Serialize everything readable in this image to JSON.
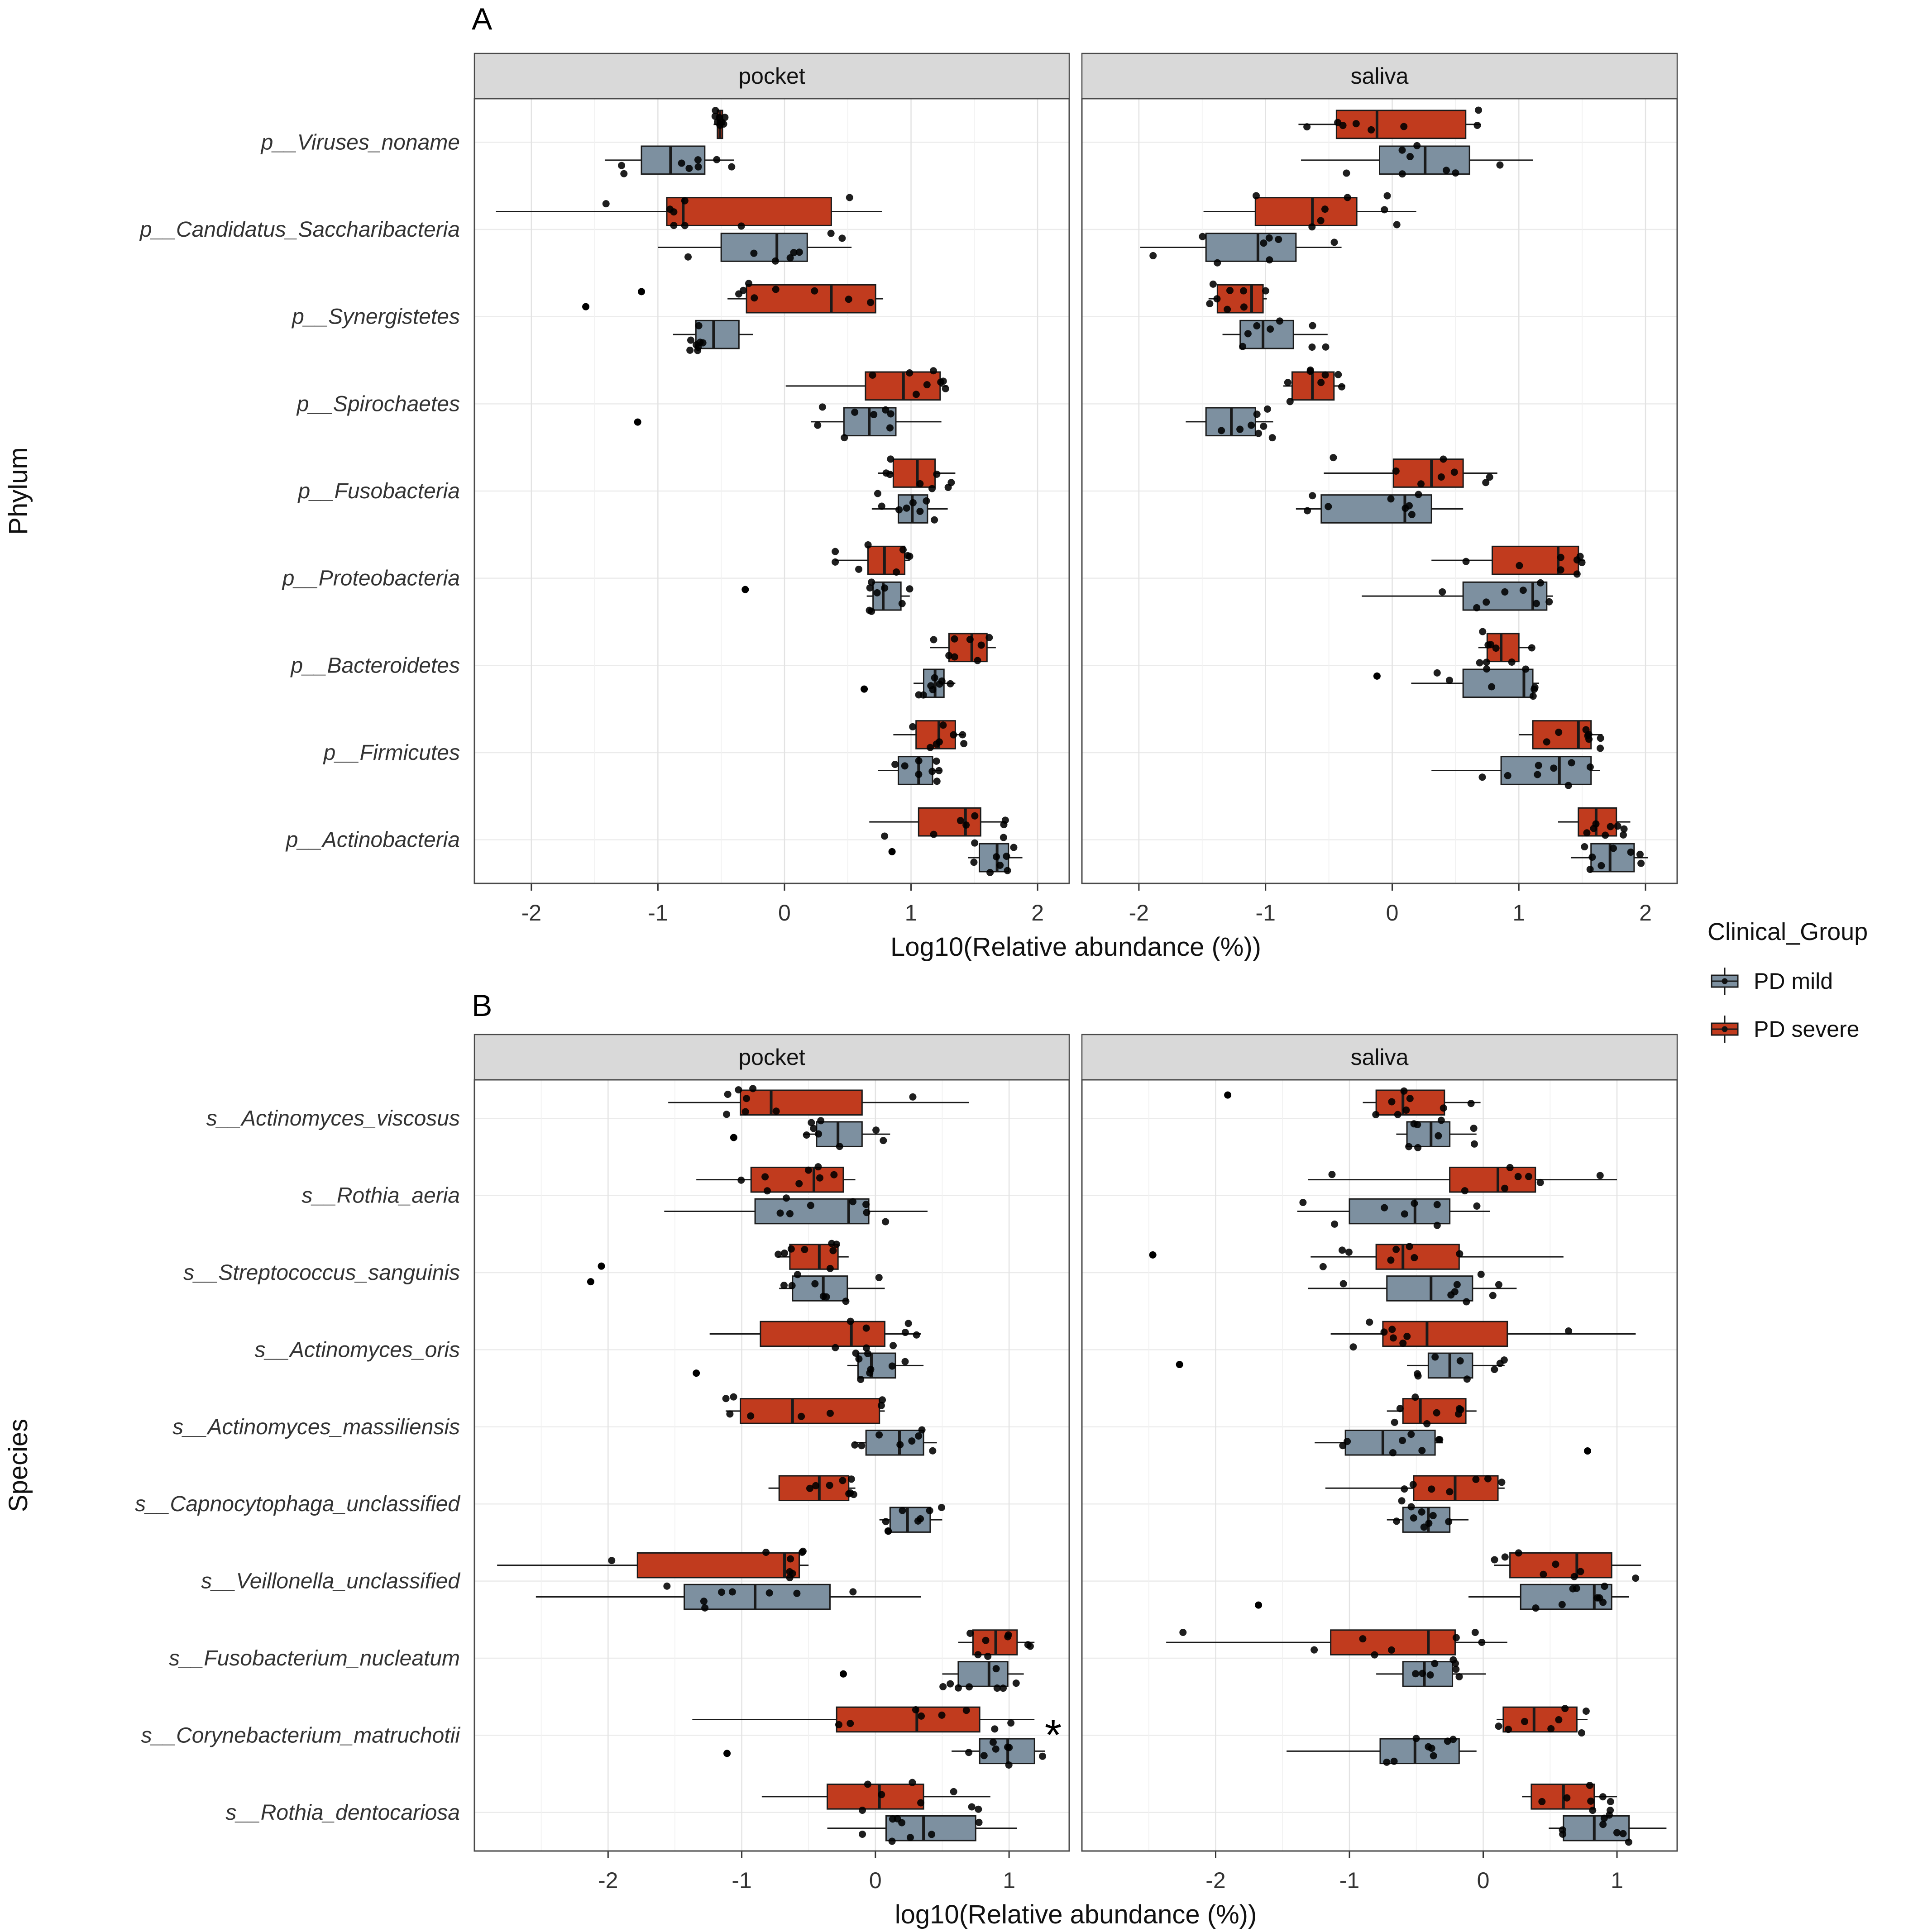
{
  "legend": {
    "title": "Clinical_Group",
    "items": [
      {
        "label": "PD mild",
        "color": "#7D90A0"
      },
      {
        "label": "PD severe",
        "color": "#C13B1E"
      }
    ]
  },
  "chart_data": [
    {
      "panel": "A",
      "type": "boxplot",
      "orientation": "horizontal",
      "axis_label": "Phylum",
      "xlabel": "Log10(Relative abundance (%))",
      "xlim": [
        -2.45,
        2.25
      ],
      "xticks": [
        -2,
        -1,
        0,
        1,
        2
      ],
      "facets": [
        "pocket",
        "saliva"
      ],
      "categories": [
        "p__Viruses_noname",
        "p__Candidatus_Saccharibacteria",
        "p__Synergistetes",
        "p__Spirochaetes",
        "p__Fusobacteria",
        "p__Proteobacteria",
        "p__Bacteroidetes",
        "p__Firmicutes",
        "p__Actinobacteria"
      ],
      "series": [
        {
          "name": "PD severe",
          "color": "#C13B1E",
          "offset": -0.205,
          "facet_values": {
            "pocket": [
              [
                -0.56,
                -0.53,
                -0.51,
                -0.49,
                -0.47
              ],
              [
                -2.28,
                -0.93,
                -0.8,
                0.37,
                0.77
              ],
              [
                -0.45,
                -0.3,
                0.37,
                0.72,
                0.78
              ],
              [
                0.01,
                0.64,
                0.94,
                1.23,
                1.29
              ],
              [
                0.74,
                0.86,
                1.05,
                1.19,
                1.35
              ],
              [
                0.4,
                0.66,
                0.79,
                0.95,
                0.99
              ],
              [
                1.15,
                1.3,
                1.48,
                1.6,
                1.67
              ],
              [
                0.86,
                1.04,
                1.22,
                1.35,
                1.42
              ],
              [
                0.67,
                1.06,
                1.43,
                1.55,
                1.75
              ]
            ],
            "saliva": [
              [
                -0.74,
                -0.44,
                -0.12,
                0.58,
                0.7
              ],
              [
                -1.49,
                -1.08,
                -0.63,
                -0.28,
                0.19
              ],
              [
                -1.45,
                -1.38,
                -1.11,
                -1.02,
                -0.99
              ],
              [
                -0.86,
                -0.79,
                -0.63,
                -0.46,
                -0.37
              ],
              [
                -0.54,
                0.01,
                0.31,
                0.56,
                0.83
              ],
              [
                0.31,
                0.79,
                1.31,
                1.47,
                1.52
              ],
              [
                0.68,
                0.75,
                0.86,
                1.0,
                1.11
              ],
              [
                1.0,
                1.11,
                1.47,
                1.57,
                1.66
              ],
              [
                1.31,
                1.47,
                1.61,
                1.77,
                1.88
              ]
            ]
          },
          "facet_outliers": {
            "pocket": {
              "2": [
                -1.57,
                -1.13
              ]
            }
          }
        },
        {
          "name": "PD mild",
          "color": "#7D90A0",
          "offset": 0.205,
          "facet_values": {
            "pocket": [
              [
                -1.42,
                -1.13,
                -0.9,
                -0.63,
                -0.4
              ],
              [
                -1.0,
                -0.5,
                -0.06,
                0.18,
                0.53
              ],
              [
                -0.88,
                -0.7,
                -0.56,
                -0.36,
                -0.25
              ],
              [
                0.21,
                0.47,
                0.67,
                0.88,
                1.24
              ],
              [
                0.69,
                0.9,
                1.01,
                1.13,
                1.29
              ],
              [
                0.65,
                0.7,
                0.78,
                0.92,
                0.99
              ],
              [
                1.02,
                1.1,
                1.19,
                1.26,
                1.35
              ],
              [
                0.74,
                0.9,
                1.06,
                1.17,
                1.24
              ],
              [
                1.45,
                1.54,
                1.68,
                1.77,
                1.88
              ]
            ],
            "saliva": [
              [
                -0.72,
                -0.1,
                0.26,
                0.61,
                1.11
              ],
              [
                -1.99,
                -1.47,
                -1.06,
                -0.76,
                -0.4
              ],
              [
                -1.34,
                -1.2,
                -1.02,
                -0.78,
                -0.51
              ],
              [
                -1.63,
                -1.47,
                -1.27,
                -1.08,
                -0.94
              ],
              [
                -0.76,
                -0.56,
                0.1,
                0.31,
                0.56
              ],
              [
                -0.24,
                0.56,
                1.11,
                1.22,
                1.27
              ],
              [
                0.15,
                0.56,
                1.04,
                1.11,
                1.16
              ],
              [
                0.31,
                0.86,
                1.32,
                1.57,
                1.64
              ],
              [
                1.41,
                1.57,
                1.72,
                1.91,
                2.02
              ]
            ]
          },
          "facet_outliers": {
            "pocket": {
              "3": [
                -1.16
              ],
              "5": [
                -0.31
              ],
              "6": [
                0.63
              ],
              "8": [
                0.85
              ]
            },
            "saliva": {
              "6": [
                -0.12
              ]
            }
          }
        }
      ],
      "annotations": []
    },
    {
      "panel": "B",
      "type": "boxplot",
      "orientation": "horizontal",
      "axis_label": "Species",
      "xlabel": "log10(Relative abundance (%))",
      "xlim": [
        -3.0,
        1.45
      ],
      "xticks": [
        -2,
        -1,
        0,
        1
      ],
      "facets": [
        "pocket",
        "saliva"
      ],
      "categories": [
        "s__Actinomyces_viscosus",
        "s__Rothia_aeria",
        "s__Streptococcus_sanguinis",
        "s__Actinomyces_oris",
        "s__Actinomyces_massiliensis",
        "s__Capnocytophaga_unclassified",
        "s__Veillonella_unclassified",
        "s__Fusobacterium_nucleatum",
        "s__Corynebacterium_matruchotii",
        "s__Rothia_dentocariosa"
      ],
      "series": [
        {
          "name": "PD severe",
          "color": "#C13B1E",
          "offset": -0.205,
          "facet_values": {
            "pocket": [
              [
                -1.55,
                -1.01,
                -0.78,
                -0.1,
                0.7
              ],
              [
                -1.34,
                -0.93,
                -0.46,
                -0.24,
                -0.15
              ],
              [
                -0.73,
                -0.64,
                -0.42,
                -0.28,
                -0.2
              ],
              [
                -1.24,
                -0.86,
                -0.18,
                0.07,
                0.34
              ],
              [
                -1.12,
                -1.01,
                -0.62,
                0.03,
                0.07
              ],
              [
                -0.8,
                -0.72,
                -0.42,
                -0.2,
                -0.15
              ],
              [
                -2.83,
                -1.78,
                -0.68,
                -0.57,
                -0.5
              ],
              [
                0.62,
                0.73,
                0.9,
                1.06,
                1.19
              ],
              [
                -1.37,
                -0.29,
                0.31,
                0.78,
                1.19
              ],
              [
                -0.85,
                -0.36,
                0.03,
                0.36,
                0.86
              ]
            ],
            "saliva": [
              [
                -0.9,
                -0.8,
                -0.6,
                -0.29,
                -0.02
              ],
              [
                -1.31,
                -0.25,
                0.11,
                0.39,
                1.0
              ],
              [
                -1.29,
                -0.8,
                -0.6,
                -0.18,
                0.6
              ],
              [
                -1.14,
                -0.75,
                -0.42,
                0.18,
                1.14
              ],
              [
                -0.72,
                -0.6,
                -0.47,
                -0.13,
                -0.05
              ],
              [
                -1.18,
                -0.52,
                -0.21,
                0.11,
                0.16
              ],
              [
                0.08,
                0.2,
                0.7,
                0.96,
                1.18
              ],
              [
                -2.37,
                -1.14,
                -0.41,
                -0.21,
                0.18
              ],
              [
                0.1,
                0.15,
                0.38,
                0.7,
                0.78
              ],
              [
                0.29,
                0.36,
                0.6,
                0.83,
                1.0
              ]
            ]
          },
          "facet_outliers": {
            "pocket": {
              "2": [
                -2.05
              ]
            },
            "saliva": {
              "0": [
                -1.91
              ],
              "2": [
                -2.47
              ]
            }
          }
        },
        {
          "name": "PD mild",
          "color": "#7D90A0",
          "offset": 0.205,
          "facet_values": {
            "pocket": [
              [
                -0.54,
                -0.44,
                -0.28,
                -0.1,
                0.11
              ],
              [
                -1.58,
                -0.9,
                -0.2,
                -0.05,
                0.39
              ],
              [
                -0.72,
                -0.62,
                -0.39,
                -0.21,
                0.07
              ],
              [
                -0.21,
                -0.13,
                -0.03,
                0.15,
                0.36
              ],
              [
                -0.16,
                -0.07,
                0.18,
                0.36,
                0.46
              ],
              [
                0.03,
                0.11,
                0.24,
                0.41,
                0.5
              ],
              [
                -2.54,
                -1.43,
                -0.9,
                -0.34,
                0.34
              ],
              [
                0.5,
                0.62,
                0.85,
                0.99,
                1.11
              ],
              [
                0.57,
                0.78,
                0.99,
                1.19,
                1.27
              ],
              [
                -0.36,
                0.08,
                0.36,
                0.75,
                1.06
              ]
            ],
            "saliva": [
              [
                -0.65,
                -0.57,
                -0.39,
                -0.25,
                -0.05
              ],
              [
                -1.39,
                -1.0,
                -0.51,
                -0.25,
                0.05
              ],
              [
                -1.31,
                -0.72,
                -0.39,
                -0.08,
                0.25
              ],
              [
                -0.57,
                -0.41,
                -0.25,
                -0.08,
                0.16
              ],
              [
                -1.26,
                -1.03,
                -0.75,
                -0.36,
                -0.3
              ],
              [
                -0.72,
                -0.6,
                -0.41,
                -0.25,
                -0.11
              ],
              [
                -0.11,
                0.28,
                0.83,
                0.96,
                1.09
              ],
              [
                -0.8,
                -0.6,
                -0.44,
                -0.23,
                0.02
              ],
              [
                -1.47,
                -0.77,
                -0.51,
                -0.18,
                -0.05
              ],
              [
                0.49,
                0.6,
                0.83,
                1.09,
                1.37
              ]
            ]
          },
          "facet_outliers": {
            "pocket": {
              "0": [
                -1.06
              ],
              "2": [
                -2.13
              ],
              "3": [
                -1.34
              ],
              "7": [
                -0.24
              ],
              "8": [
                -1.11
              ]
            },
            "saliva": {
              "3": [
                -2.27
              ],
              "4": [
                0.78
              ],
              "6": [
                -1.68
              ]
            }
          }
        }
      ],
      "annotations": [
        {
          "facet": "pocket",
          "category_index": 8,
          "x": 1.33,
          "symbol": "*"
        }
      ]
    }
  ]
}
